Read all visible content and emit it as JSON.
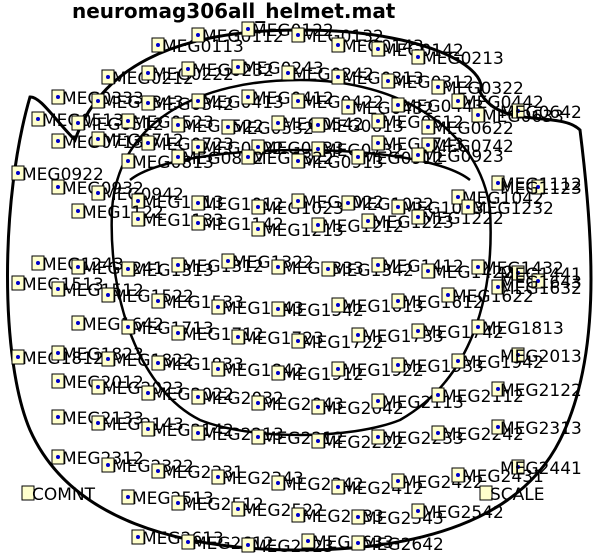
{
  "title": "neuromag306all_helmet.mat",
  "colors": {
    "box_fill": "#ffffcc",
    "dot": "#0000cc",
    "outline": "#000000"
  },
  "special_labels": [
    "COMNT",
    "SCALE"
  ],
  "sensors": [
    "MEG0113",
    "MEG0112",
    "MEG0122",
    "MEG0132",
    "MEG0143",
    "MEG0142",
    "MEG0213",
    "MEG0212",
    "MEG0222",
    "MEG0232",
    "MEG0243",
    "MEG0242",
    "MEG0313",
    "MEG0312",
    "MEG0322",
    "MEG0333",
    "MEG0343",
    "MEG0342",
    "MEG0413",
    "MEG0412",
    "MEG0422",
    "MEG0432",
    "MEG0443",
    "MEG0442",
    "MEG0513",
    "MEG0512",
    "MEG0523",
    "MEG0522",
    "MEG0532",
    "MEG0542",
    "MEG0613",
    "MEG0612",
    "MEG0622",
    "MEG0633",
    "MEG0642",
    "MEG0713",
    "MEG0712",
    "MEG0723",
    "MEG0722",
    "MEG0733",
    "MEG0732",
    "MEG0743",
    "MEG0742",
    "MEG0813",
    "MEG0812",
    "MEG0822",
    "MEG0913",
    "MEG0912",
    "MEG0923",
    "MEG0922",
    "MEG0932",
    "MEG0942",
    "MEG1013",
    "MEG1012",
    "MEG1023",
    "MEG1022",
    "MEG1032",
    "MEG1043",
    "MEG1042",
    "MEG1112",
    "MEG1123",
    "MEG1122",
    "MEG1133",
    "MEG1142",
    "MEG1213",
    "MEG1212",
    "MEG1223",
    "MEG1222",
    "MEG1232",
    "MEG1243",
    "MEG1241",
    "MEG1313",
    "MEG1312",
    "MEG1322",
    "MEG1333",
    "MEG1342",
    "MEG1412",
    "MEG1422",
    "MEG1432",
    "MEG1441",
    "MEG1513",
    "MEG1512",
    "MEG1522",
    "MEG1533",
    "MEG1543",
    "MEG1542",
    "MEG1613",
    "MEG1612",
    "MEG1622",
    "MEG1632",
    "MEG1643",
    "MEG1642",
    "MEG1713",
    "MEG1712",
    "MEG1723",
    "MEG1722",
    "MEG1733",
    "MEG1742",
    "MEG1813",
    "MEG1812",
    "MEG1823",
    "MEG1822",
    "MEG1833",
    "MEG1842",
    "MEG1912",
    "MEG1922",
    "MEG1933",
    "MEG1942",
    "MEG2013",
    "MEG2012",
    "MEG2023",
    "MEG2022",
    "MEG2032",
    "MEG2043",
    "MEG2042",
    "MEG2113",
    "MEG2112",
    "MEG2122",
    "MEG2133",
    "MEG2143",
    "MEG2142",
    "MEG2213",
    "MEG2212",
    "MEG2222",
    "MEG2233",
    "MEG2242",
    "MEG2313",
    "MEG2312",
    "MEG2322",
    "MEG2331",
    "MEG2343",
    "MEG2342",
    "MEG2412",
    "MEG2422",
    "MEG2431",
    "MEG2441",
    "MEG2513",
    "MEG2512",
    "MEG2522",
    "MEG2533",
    "MEG2543",
    "MEG2542",
    "MEG2613",
    "MEG2612",
    "MEG2623",
    "MEG2633",
    "MEG2642"
  ]
}
